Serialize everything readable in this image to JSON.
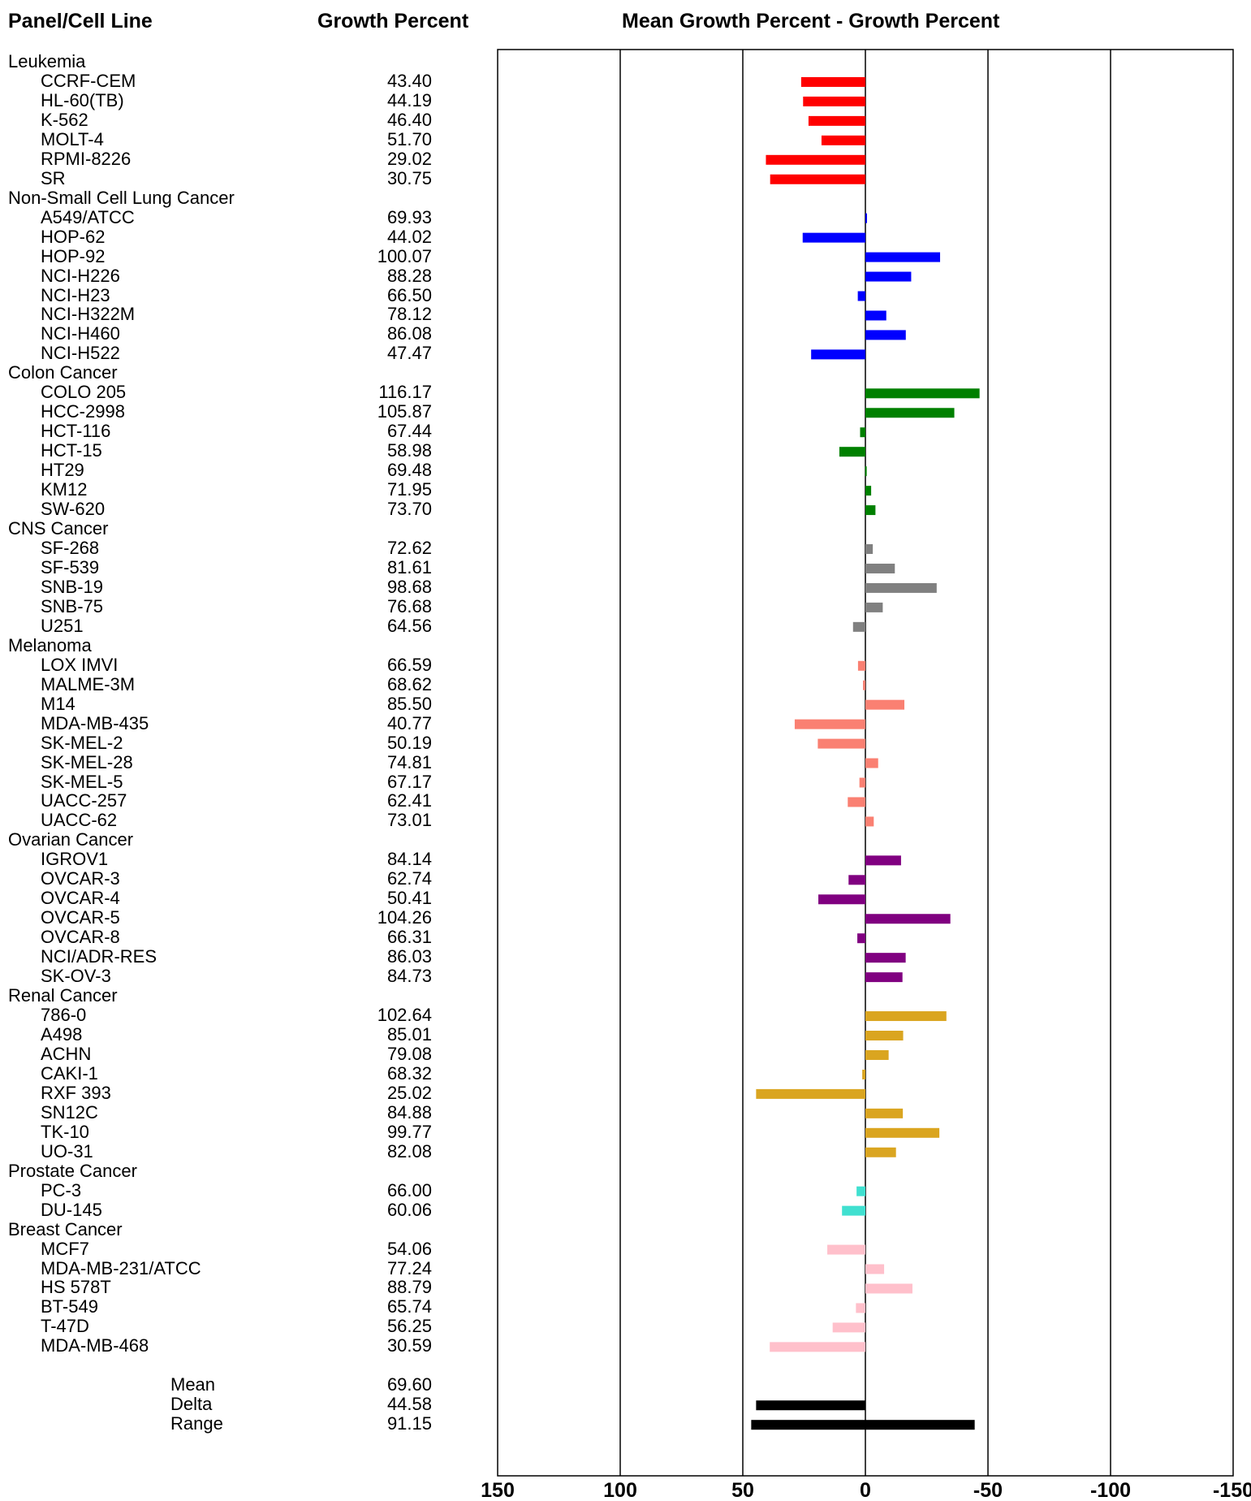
{
  "headers": {
    "panel": "Panel/Cell Line",
    "growth": "Growth Percent",
    "mean_diff": "Mean Growth Percent - Growth Percent"
  },
  "panels": [
    {
      "name": "Leukemia",
      "color": "#ff0000",
      "lines": [
        {
          "name": "CCRF-CEM",
          "value": "43.40"
        },
        {
          "name": "HL-60(TB)",
          "value": "44.19"
        },
        {
          "name": "K-562",
          "value": "46.40"
        },
        {
          "name": "MOLT-4",
          "value": "51.70"
        },
        {
          "name": "RPMI-8226",
          "value": "29.02"
        },
        {
          "name": "SR",
          "value": "30.75"
        }
      ]
    },
    {
      "name": "Non-Small Cell Lung Cancer",
      "color": "#0000ff",
      "lines": [
        {
          "name": "A549/ATCC",
          "value": "69.93"
        },
        {
          "name": "HOP-62",
          "value": "44.02"
        },
        {
          "name": "HOP-92",
          "value": "100.07"
        },
        {
          "name": "NCI-H226",
          "value": "88.28"
        },
        {
          "name": "NCI-H23",
          "value": "66.50"
        },
        {
          "name": "NCI-H322M",
          "value": "78.12"
        },
        {
          "name": "NCI-H460",
          "value": "86.08"
        },
        {
          "name": "NCI-H522",
          "value": "47.47"
        }
      ]
    },
    {
      "name": "Colon Cancer",
      "color": "#008000",
      "lines": [
        {
          "name": "COLO 205",
          "value": "116.17"
        },
        {
          "name": "HCC-2998",
          "value": "105.87"
        },
        {
          "name": "HCT-116",
          "value": "67.44"
        },
        {
          "name": "HCT-15",
          "value": "58.98"
        },
        {
          "name": "HT29",
          "value": "69.48"
        },
        {
          "name": "KM12",
          "value": "71.95"
        },
        {
          "name": "SW-620",
          "value": "73.70"
        }
      ]
    },
    {
      "name": "CNS Cancer",
      "color": "#808080",
      "lines": [
        {
          "name": "SF-268",
          "value": "72.62"
        },
        {
          "name": "SF-539",
          "value": "81.61"
        },
        {
          "name": "SNB-19",
          "value": "98.68"
        },
        {
          "name": "SNB-75",
          "value": "76.68"
        },
        {
          "name": "U251",
          "value": "64.56"
        }
      ]
    },
    {
      "name": "Melanoma",
      "color": "#fa8072",
      "lines": [
        {
          "name": "LOX IMVI",
          "value": "66.59"
        },
        {
          "name": "MALME-3M",
          "value": "68.62"
        },
        {
          "name": "M14",
          "value": "85.50"
        },
        {
          "name": "MDA-MB-435",
          "value": "40.77"
        },
        {
          "name": "SK-MEL-2",
          "value": "50.19"
        },
        {
          "name": "SK-MEL-28",
          "value": "74.81"
        },
        {
          "name": "SK-MEL-5",
          "value": "67.17"
        },
        {
          "name": "UACC-257",
          "value": "62.41"
        },
        {
          "name": "UACC-62",
          "value": "73.01"
        }
      ]
    },
    {
      "name": "Ovarian Cancer",
      "color": "#800080",
      "lines": [
        {
          "name": "IGROV1",
          "value": "84.14"
        },
        {
          "name": "OVCAR-3",
          "value": "62.74"
        },
        {
          "name": "OVCAR-4",
          "value": "50.41"
        },
        {
          "name": "OVCAR-5",
          "value": "104.26"
        },
        {
          "name": "OVCAR-8",
          "value": "66.31"
        },
        {
          "name": "NCI/ADR-RES",
          "value": "86.03"
        },
        {
          "name": "SK-OV-3",
          "value": "84.73"
        }
      ]
    },
    {
      "name": "Renal Cancer",
      "color": "#daa520",
      "lines": [
        {
          "name": "786-0",
          "value": "102.64"
        },
        {
          "name": "A498",
          "value": "85.01"
        },
        {
          "name": "ACHN",
          "value": "79.08"
        },
        {
          "name": "CAKI-1",
          "value": "68.32"
        },
        {
          "name": "RXF 393",
          "value": "25.02"
        },
        {
          "name": "SN12C",
          "value": "84.88"
        },
        {
          "name": "TK-10",
          "value": "99.77"
        },
        {
          "name": "UO-31",
          "value": "82.08"
        }
      ]
    },
    {
      "name": "Prostate Cancer",
      "color": "#40e0d0",
      "lines": [
        {
          "name": "PC-3",
          "value": "66.00"
        },
        {
          "name": "DU-145",
          "value": "60.06"
        }
      ]
    },
    {
      "name": "Breast Cancer",
      "color": "#ffc0cb",
      "lines": [
        {
          "name": "MCF7",
          "value": "54.06"
        },
        {
          "name": "MDA-MB-231/ATCC",
          "value": "77.24"
        },
        {
          "name": "HS 578T",
          "value": "88.79"
        },
        {
          "name": "BT-549",
          "value": "65.74"
        },
        {
          "name": "T-47D",
          "value": "56.25"
        },
        {
          "name": "MDA-MB-468",
          "value": "30.59"
        }
      ]
    }
  ],
  "summary": [
    {
      "name": "Mean",
      "value": "69.60"
    },
    {
      "name": "Delta",
      "value": "44.58"
    },
    {
      "name": "Range",
      "value": "91.15"
    }
  ],
  "chart_data": {
    "type": "bar",
    "orientation": "horizontal",
    "xlim": [
      150,
      -150
    ],
    "x_ticks": [
      "150",
      "100",
      "50",
      "0",
      "-50",
      "-100",
      "-150"
    ],
    "x_tick_values": [
      150,
      100,
      50,
      0,
      -50,
      -100,
      -150
    ],
    "grid": true,
    "mean": 69.6,
    "series": [
      {
        "categories": [
          "CCRF-CEM",
          "HL-60(TB)",
          "K-562",
          "MOLT-4",
          "RPMI-8226",
          "SR"
        ],
        "values": [
          26.2,
          25.41,
          23.2,
          17.9,
          40.58,
          38.85
        ],
        "color": "#ff0000"
      },
      {
        "categories": [
          "A549/ATCC",
          "HOP-62",
          "HOP-92",
          "NCI-H226",
          "NCI-H23",
          "NCI-H322M",
          "NCI-H460",
          "NCI-H522"
        ],
        "values": [
          -0.33,
          25.58,
          -30.47,
          -18.68,
          3.1,
          -8.52,
          -16.48,
          22.13
        ],
        "color": "#0000ff"
      },
      {
        "categories": [
          "COLO 205",
          "HCC-2998",
          "HCT-116",
          "HCT-15",
          "HT29",
          "KM12",
          "SW-620"
        ],
        "values": [
          -46.57,
          -36.27,
          2.16,
          10.62,
          0.12,
          -2.35,
          -4.1
        ],
        "color": "#008000"
      },
      {
        "categories": [
          "SF-268",
          "SF-539",
          "SNB-19",
          "SNB-75",
          "U251"
        ],
        "values": [
          -3.02,
          -12.01,
          -29.08,
          -7.08,
          5.04
        ],
        "color": "#808080"
      },
      {
        "categories": [
          "LOX IMVI",
          "MALME-3M",
          "M14",
          "MDA-MB-435",
          "SK-MEL-2",
          "SK-MEL-28",
          "SK-MEL-5",
          "UACC-257",
          "UACC-62"
        ],
        "values": [
          3.01,
          0.98,
          -15.9,
          28.83,
          19.41,
          -5.21,
          2.43,
          7.19,
          -3.41
        ],
        "color": "#fa8072"
      },
      {
        "categories": [
          "IGROV1",
          "OVCAR-3",
          "OVCAR-4",
          "OVCAR-5",
          "OVCAR-8",
          "NCI/ADR-RES",
          "SK-OV-3"
        ],
        "values": [
          -14.54,
          6.86,
          19.19,
          -34.66,
          3.29,
          -16.43,
          -15.13
        ],
        "color": "#800080"
      },
      {
        "categories": [
          "786-0",
          "A498",
          "ACHN",
          "CAKI-1",
          "RXF 393",
          "SN12C",
          "TK-10",
          "UO-31"
        ],
        "values": [
          -33.04,
          -15.41,
          -9.48,
          1.28,
          44.58,
          -15.28,
          -30.17,
          -12.48
        ],
        "color": "#daa520"
      },
      {
        "categories": [
          "PC-3",
          "DU-145"
        ],
        "values": [
          3.6,
          9.54
        ],
        "color": "#40e0d0"
      },
      {
        "categories": [
          "MCF7",
          "MDA-MB-231/ATCC",
          "HS 578T",
          "BT-549",
          "T-47D",
          "MDA-MB-468"
        ],
        "values": [
          15.54,
          -7.64,
          -19.19,
          3.86,
          13.35,
          39.01
        ],
        "color": "#ffc0cb"
      },
      {
        "categories": [
          "Delta",
          "Range"
        ],
        "values": [
          44.58,
          -91.15
        ],
        "color": "#000000",
        "spans": [
          [
            0,
            44.58
          ],
          [
            46.57,
            -44.58
          ]
        ]
      }
    ]
  }
}
